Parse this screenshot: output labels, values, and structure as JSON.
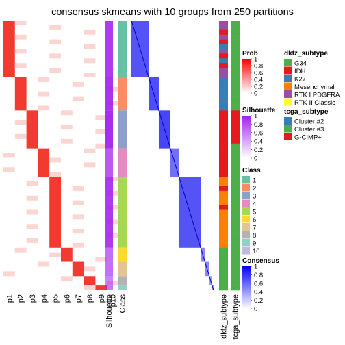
{
  "chart_data": {
    "type": "heatmap",
    "title": "consensus skmeans with 10 groups from 250 partitions",
    "prob_columns": [
      "p1",
      "p2",
      "p3",
      "p4",
      "p5",
      "p6",
      "p7",
      "p8",
      "p9",
      "p10"
    ],
    "track_labels": {
      "silhouette": "Silhouette",
      "class": "Class",
      "dkfz": "dkfz_subtype",
      "tcga": "tcga_subtype"
    },
    "groups": [
      {
        "cls": 1,
        "size": 12,
        "silhouette": 0.85,
        "dkfz": [
          4,
          4,
          1,
          4,
          1,
          2,
          4,
          1,
          2,
          1,
          4,
          4
        ],
        "tcga": [
          1,
          1,
          1,
          1,
          1,
          1,
          1,
          1,
          1,
          1,
          1,
          1
        ]
      },
      {
        "cls": 2,
        "size": 7,
        "silhouette": 0.88,
        "dkfz": [
          2,
          2,
          2,
          2,
          2,
          2,
          2
        ],
        "tcga": [
          1,
          1,
          1,
          1,
          1,
          1,
          1
        ]
      },
      {
        "cls": 3,
        "size": 8,
        "silhouette": 0.92,
        "dkfz": [
          1,
          1,
          1,
          1,
          1,
          1,
          1,
          1
        ],
        "tcga": [
          2,
          2,
          2,
          2,
          2,
          2,
          2,
          1
        ]
      },
      {
        "cls": 4,
        "size": 6,
        "silhouette": 0.68,
        "dkfz": [
          1,
          1,
          1,
          1,
          1,
          1
        ],
        "tcga": [
          1,
          1,
          1,
          1,
          1,
          1
        ]
      },
      {
        "cls": 5,
        "size": 15,
        "silhouette": 0.85,
        "dkfz": [
          3,
          3,
          1,
          3,
          3,
          3,
          1,
          3,
          3,
          3,
          3,
          3,
          3,
          3,
          3
        ],
        "tcga": [
          1,
          1,
          1,
          1,
          1,
          1,
          1,
          1,
          1,
          1,
          1,
          1,
          1,
          1,
          1
        ]
      },
      {
        "cls": 6,
        "size": 3,
        "silhouette": 0.55,
        "dkfz": [
          0,
          0,
          0
        ],
        "tcga": [
          1,
          1,
          1
        ]
      },
      {
        "cls": 7,
        "size": 3,
        "silhouette": 0.55,
        "dkfz": [
          0,
          0,
          0
        ],
        "tcga": [
          1,
          1,
          1
        ]
      },
      {
        "cls": 8,
        "size": 2,
        "silhouette": 0.45,
        "dkfz": [
          0,
          0
        ],
        "tcga": [
          1,
          1
        ]
      },
      {
        "cls": 9,
        "size": 1,
        "silhouette": 0.5,
        "dkfz": [
          0
        ],
        "tcga": [
          1
        ]
      }
    ],
    "legends": {
      "prob": {
        "title": "Prob",
        "ticks": [
          "1",
          "0.8",
          "0.6",
          "0.4",
          "0.2",
          "0"
        ],
        "low": "#ffffff",
        "high": "#ff0000"
      },
      "silhouette": {
        "title": "Silhouette",
        "ticks": [
          "1",
          "0.8",
          "0.6",
          "0.4",
          "0.2",
          "0"
        ],
        "low": "#ffffff",
        "high": "#a020f0"
      },
      "class": {
        "title": "Class",
        "items": [
          {
            "label": "1",
            "color": "#66c2a5"
          },
          {
            "label": "2",
            "color": "#fc8d62"
          },
          {
            "label": "3",
            "color": "#8da0cb"
          },
          {
            "label": "4",
            "color": "#e78ac3"
          },
          {
            "label": "5",
            "color": "#a6d854"
          },
          {
            "label": "6",
            "color": "#ffd92f"
          },
          {
            "label": "7",
            "color": "#e5c494"
          },
          {
            "label": "8",
            "color": "#b3b3b3"
          },
          {
            "label": "9",
            "color": "#8dd3c7"
          },
          {
            "label": "10",
            "color": "#bebada"
          }
        ]
      },
      "consensus": {
        "title": "Consensus",
        "ticks": [
          "1",
          "0.8",
          "0.6",
          "0.4",
          "0.2",
          "0"
        ],
        "low": "#ffffff",
        "high": "#0000ff"
      },
      "dkfz": {
        "title": "dkfz_subtype",
        "items": [
          {
            "label": "G34",
            "color": "#4daf4a"
          },
          {
            "label": "IDH",
            "color": "#e41a1c"
          },
          {
            "label": "K27",
            "color": "#377eb8"
          },
          {
            "label": "Mesenchymal",
            "color": "#ff7f00"
          },
          {
            "label": "RTK I PDGFRA",
            "color": "#984ea3"
          },
          {
            "label": "RTK II Classic",
            "color": "#ffff33"
          }
        ]
      },
      "tcga": {
        "title": "tcga_subtype",
        "items": [
          {
            "label": "Cluster #2",
            "color": "#377eb8"
          },
          {
            "label": "Cluster #3",
            "color": "#4daf4a"
          },
          {
            "label": "G-CIMP+",
            "color": "#e41a1c"
          }
        ]
      }
    }
  }
}
